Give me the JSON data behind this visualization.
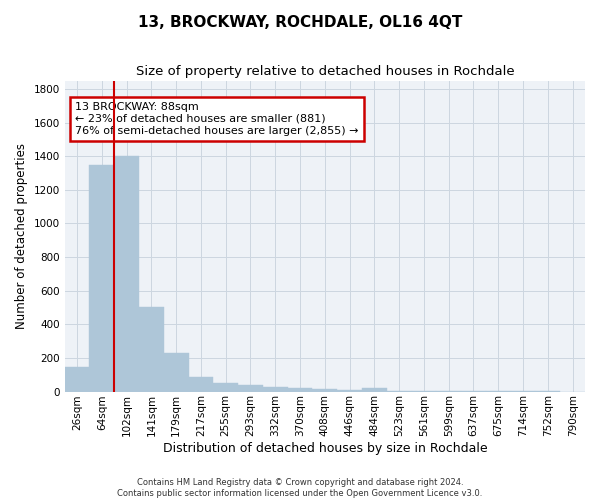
{
  "title": "13, BROCKWAY, ROCHDALE, OL16 4QT",
  "subtitle": "Size of property relative to detached houses in Rochdale",
  "xlabel": "Distribution of detached houses by size in Rochdale",
  "ylabel": "Number of detached properties",
  "footer_line1": "Contains HM Land Registry data © Crown copyright and database right 2024.",
  "footer_line2": "Contains public sector information licensed under the Open Government Licence v3.0.",
  "bins": [
    "26sqm",
    "64sqm",
    "102sqm",
    "141sqm",
    "179sqm",
    "217sqm",
    "255sqm",
    "293sqm",
    "332sqm",
    "370sqm",
    "408sqm",
    "446sqm",
    "484sqm",
    "523sqm",
    "561sqm",
    "599sqm",
    "637sqm",
    "675sqm",
    "714sqm",
    "752sqm",
    "790sqm"
  ],
  "values": [
    145,
    1345,
    1400,
    500,
    230,
    85,
    50,
    40,
    28,
    22,
    15,
    10,
    22,
    5,
    3,
    2,
    2,
    1,
    1,
    1,
    0
  ],
  "bar_color": "#aec6d8",
  "bar_edgecolor": "#aec6d8",
  "vline_color": "#cc0000",
  "vline_x_index": 1.5,
  "annotation_text_line1": "13 BROCKWAY: 88sqm",
  "annotation_text_line2": "← 23% of detached houses are smaller (881)",
  "annotation_text_line3": "76% of semi-detached houses are larger (2,855) →",
  "annotation_box_color": "#cc0000",
  "ylim": [
    0,
    1850
  ],
  "yticks": [
    0,
    200,
    400,
    600,
    800,
    1000,
    1200,
    1400,
    1600,
    1800
  ],
  "grid_color": "#ccd6e0",
  "background_color": "#eef2f7",
  "title_fontsize": 11,
  "subtitle_fontsize": 9.5,
  "xlabel_fontsize": 9,
  "ylabel_fontsize": 8.5,
  "tick_fontsize": 7.5,
  "annotation_fontsize": 8,
  "footer_fontsize": 6
}
